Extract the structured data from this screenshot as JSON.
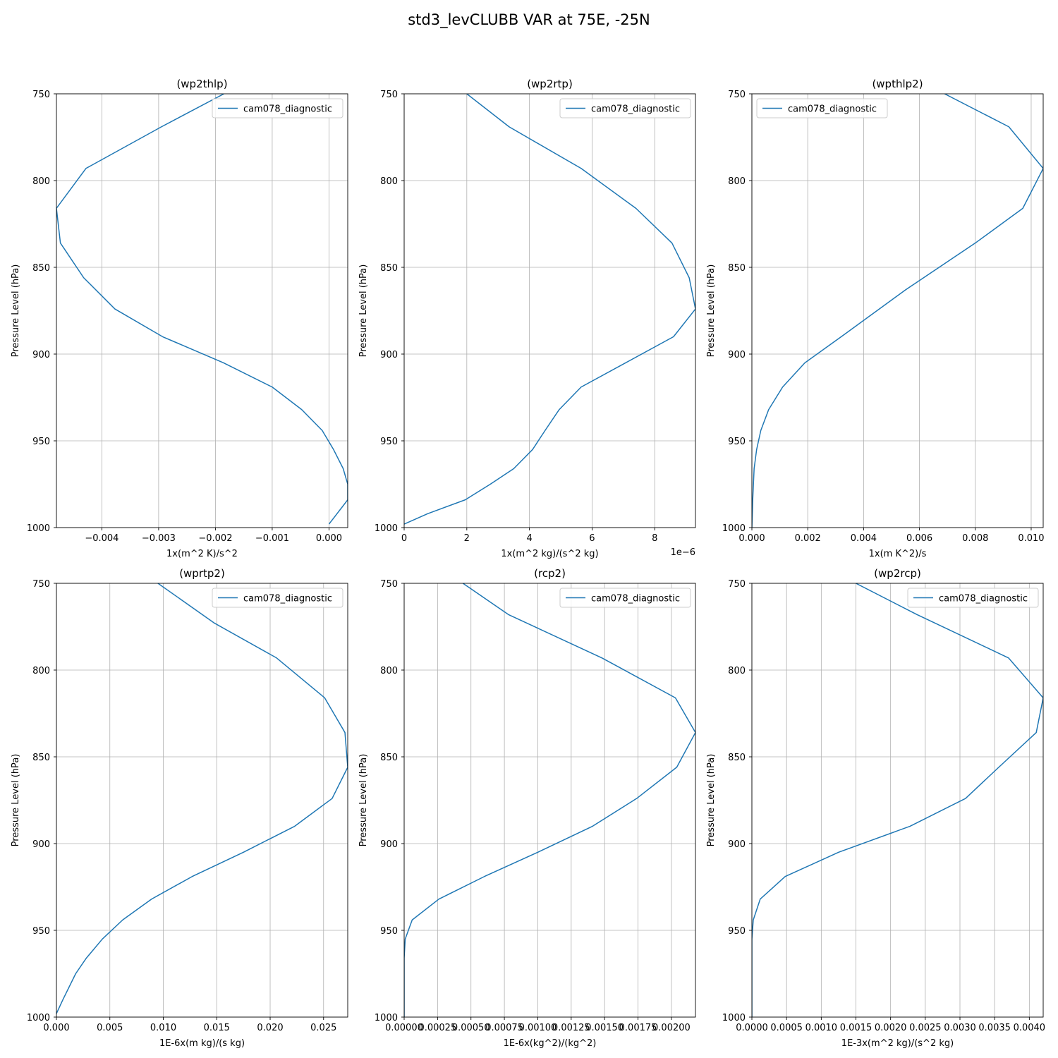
{
  "figure_title": "std3_levCLUBB VAR at 75E, -25N",
  "chart_data": [
    {
      "type": "line",
      "title": "(wp2thlp)",
      "xlabel": "1x(m^2 K)/s^2",
      "ylabel": "Pressure Level (hPa)",
      "xlim": [
        -0.0048,
        0.00033
      ],
      "ylim": [
        1000,
        750
      ],
      "xticks": [
        -0.004,
        -0.003,
        -0.002,
        -0.001,
        0.0
      ],
      "xtick_labels": [
        "−0.004",
        "−0.003",
        "−0.002",
        "−0.001",
        "0.000"
      ],
      "yticks": [
        750,
        800,
        850,
        900,
        950,
        1000
      ],
      "offset_text": "",
      "grid": true,
      "legend_position": "upper right",
      "series": [
        {
          "name": "cam078_diagnostic",
          "color": "#1f77b4",
          "x": [
            -0.00185,
            -0.00295,
            -0.00428,
            -0.0048,
            -0.00473,
            -0.00432,
            -0.00377,
            -0.00293,
            -0.00186,
            -0.001,
            -0.00048,
            -0.00012,
            8e-05,
            0.00025,
            0.00033,
            0.00033,
            0.0
          ],
          "y": [
            750,
            769,
            793,
            816,
            836,
            856,
            874,
            890,
            905,
            919,
            932,
            944,
            955,
            966,
            975,
            984,
            998
          ]
        }
      ]
    },
    {
      "type": "line",
      "title": "(wp2rtp)",
      "xlabel": "1x(m^2 kg)/(s^2 kg)",
      "ylabel": "Pressure Level (hPa)",
      "xlim": [
        0,
        9.3
      ],
      "ylim": [
        1000,
        750
      ],
      "xticks": [
        0,
        2,
        4,
        6,
        8
      ],
      "xtick_labels": [
        "0",
        "2",
        "4",
        "6",
        "8"
      ],
      "yticks": [
        750,
        800,
        850,
        900,
        950,
        1000
      ],
      "offset_text": "1e−6",
      "grid": true,
      "legend_position": "upper right",
      "series": [
        {
          "name": "cam078_diagnostic",
          "color": "#1f77b4",
          "x": [
            2.0,
            3.35,
            5.65,
            7.4,
            8.55,
            9.1,
            9.3,
            8.6,
            5.65,
            4.95,
            4.5,
            4.1,
            3.5,
            2.75,
            1.95,
            0.75,
            0.0
          ],
          "y": [
            750,
            769,
            793,
            816,
            836,
            856,
            874,
            890,
            919,
            932,
            944,
            955,
            966,
            975,
            984,
            992,
            998
          ]
        }
      ]
    },
    {
      "type": "line",
      "title": "(wpthlp2)",
      "xlabel": "1x(m K^2)/s",
      "ylabel": "Pressure Level (hPa)",
      "xlim": [
        0,
        0.01043
      ],
      "ylim": [
        1000,
        750
      ],
      "xticks": [
        0.0,
        0.002,
        0.004,
        0.006,
        0.008,
        0.01
      ],
      "xtick_labels": [
        "0.000",
        "0.002",
        "0.004",
        "0.006",
        "0.008",
        "0.010"
      ],
      "yticks": [
        750,
        800,
        850,
        900,
        950,
        1000
      ],
      "offset_text": "",
      "grid": true,
      "legend_position": "upper left",
      "series": [
        {
          "name": "cam078_diagnostic",
          "color": "#1f77b4",
          "x": [
            0.0069,
            0.0092,
            0.01043,
            0.0097,
            0.008,
            0.0055,
            0.0032,
            0.0019,
            0.0011,
            0.0006,
            0.00032,
            0.00017,
            8e-05,
            3e-05,
            0.0
          ],
          "y": [
            750,
            769,
            793,
            816,
            836,
            863,
            890,
            905,
            919,
            932,
            944,
            955,
            966,
            984,
            1000
          ]
        }
      ]
    },
    {
      "type": "line",
      "title": "(wprtp2)",
      "xlabel": "1E-6x(m kg)/(s kg)",
      "ylabel": "Pressure Level (hPa)",
      "xlim": [
        0,
        0.02726
      ],
      "ylim": [
        1000,
        750
      ],
      "xticks": [
        0.0,
        0.005,
        0.01,
        0.015,
        0.02,
        0.025
      ],
      "xtick_labels": [
        "0.000",
        "0.005",
        "0.010",
        "0.015",
        "0.020",
        "0.025"
      ],
      "yticks": [
        750,
        800,
        850,
        900,
        950,
        1000
      ],
      "offset_text": "",
      "grid": true,
      "legend_position": "upper right",
      "series": [
        {
          "name": "cam078_diagnostic",
          "color": "#1f77b4",
          "x": [
            0.0095,
            0.0148,
            0.0206,
            0.0251,
            0.027,
            0.02726,
            0.0258,
            0.0223,
            0.0175,
            0.0127,
            0.0089,
            0.0062,
            0.0043,
            0.0028,
            0.0018,
            0.0006,
            0.0
          ],
          "y": [
            750,
            773,
            793,
            816,
            836,
            856,
            874,
            890,
            905,
            919,
            932,
            944,
            955,
            966,
            975,
            990,
            998
          ]
        }
      ]
    },
    {
      "type": "line",
      "title": "(rcp2)",
      "xlabel": "1E-6x(kg^2)/(kg^2)",
      "ylabel": "Pressure Level (hPa)",
      "xlim": [
        0,
        0.00218
      ],
      "ylim": [
        1000,
        750
      ],
      "xticks": [
        0.0,
        0.00025,
        0.0005,
        0.00075,
        0.001,
        0.00125,
        0.0015,
        0.00175,
        0.002
      ],
      "xtick_labels": [
        "0.00000",
        "0.00025",
        "0.00050",
        "0.00075",
        "0.00100",
        "0.00125",
        "0.00150",
        "0.00175",
        "0.00200"
      ],
      "yticks": [
        750,
        800,
        850,
        900,
        950,
        1000
      ],
      "offset_text": "",
      "grid": true,
      "legend_position": "upper right",
      "series": [
        {
          "name": "cam078_diagnostic",
          "color": "#1f77b4",
          "x": [
            0.00044,
            0.00078,
            0.00148,
            0.00203,
            0.00218,
            0.00204,
            0.00174,
            0.00141,
            0.001,
            0.0006,
            0.00026,
            6e-05,
            8e-06,
            0.0,
            0.0
          ],
          "y": [
            750,
            768,
            793,
            816,
            836,
            856,
            874,
            890,
            905,
            919,
            932,
            944,
            955,
            966,
            1000
          ]
        }
      ]
    },
    {
      "type": "line",
      "title": "(wp2rcp)",
      "xlabel": "1E-3x(m^2 kg)/(s^2 kg)",
      "ylabel": "Pressure Level (hPa)",
      "xlim": [
        0,
        0.0042
      ],
      "ylim": [
        1000,
        750
      ],
      "xticks": [
        0.0,
        0.0005,
        0.001,
        0.0015,
        0.002,
        0.0025,
        0.003,
        0.0035,
        0.004
      ],
      "xtick_labels": [
        "0.0000",
        "0.0005",
        "0.0010",
        "0.0015",
        "0.0020",
        "0.0025",
        "0.0030",
        "0.0035",
        "0.0040"
      ],
      "yticks": [
        750,
        800,
        850,
        900,
        950,
        1000
      ],
      "offset_text": "",
      "grid": true,
      "legend_position": "upper right",
      "series": [
        {
          "name": "cam078_diagnostic",
          "color": "#1f77b4",
          "x": [
            0.0015,
            0.00238,
            0.0037,
            0.0042,
            0.0041,
            0.00356,
            0.00308,
            0.00228,
            0.00125,
            0.00048,
            0.00012,
            2e-05,
            0.0,
            0.0
          ],
          "y": [
            750,
            768,
            793,
            816,
            836,
            856,
            874,
            890,
            905,
            919,
            932,
            944,
            955,
            1000
          ]
        }
      ]
    }
  ]
}
